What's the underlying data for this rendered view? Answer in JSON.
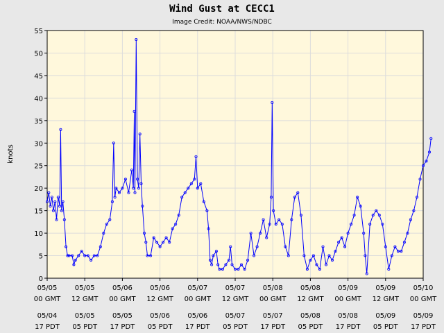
{
  "chart_data": {
    "type": "line",
    "title": "Wind Gust at CECC1",
    "subtitle": "Image Credit: NOAA/NWS/NDBC",
    "xlabel": "",
    "ylabel": "knots",
    "ylim": [
      0,
      55
    ],
    "xlim_hours": [
      0,
      120
    ],
    "y_ticks": [
      0,
      5,
      10,
      15,
      20,
      25,
      30,
      35,
      40,
      45,
      50,
      55
    ],
    "x_ticks": [
      {
        "hour": 0,
        "gmt": [
          "05/05",
          "00 GMT"
        ],
        "pdt": [
          "05/04",
          "17 PDT"
        ]
      },
      {
        "hour": 12,
        "gmt": [
          "05/05",
          "12 GMT"
        ],
        "pdt": [
          "05/05",
          "05 PDT"
        ]
      },
      {
        "hour": 24,
        "gmt": [
          "05/06",
          "00 GMT"
        ],
        "pdt": [
          "05/05",
          "17 PDT"
        ]
      },
      {
        "hour": 36,
        "gmt": [
          "05/06",
          "12 GMT"
        ],
        "pdt": [
          "05/06",
          "05 PDT"
        ]
      },
      {
        "hour": 48,
        "gmt": [
          "05/07",
          "00 GMT"
        ],
        "pdt": [
          "05/06",
          "17 PDT"
        ]
      },
      {
        "hour": 60,
        "gmt": [
          "05/07",
          "12 GMT"
        ],
        "pdt": [
          "05/07",
          "05 PDT"
        ]
      },
      {
        "hour": 72,
        "gmt": [
          "05/08",
          "00 GMT"
        ],
        "pdt": [
          "05/07",
          "17 PDT"
        ]
      },
      {
        "hour": 84,
        "gmt": [
          "05/08",
          "12 GMT"
        ],
        "pdt": [
          "05/08",
          "05 PDT"
        ]
      },
      {
        "hour": 96,
        "gmt": [
          "05/09",
          "00 GMT"
        ],
        "pdt": [
          "05/08",
          "17 PDT"
        ]
      },
      {
        "hour": 108,
        "gmt": [
          "05/09",
          "12 GMT"
        ],
        "pdt": [
          "05/09",
          "05 PDT"
        ]
      },
      {
        "hour": 120,
        "gmt": [
          "05/10",
          "00 GMT"
        ],
        "pdt": [
          "05/09",
          "17 PDT"
        ]
      }
    ],
    "grid": true,
    "series": [
      {
        "color": "#0000ff",
        "points": [
          [
            0,
            17
          ],
          [
            0.5,
            19
          ],
          [
            1,
            16
          ],
          [
            1.5,
            18
          ],
          [
            2,
            15
          ],
          [
            2.5,
            17
          ],
          [
            3,
            13
          ],
          [
            3.5,
            18
          ],
          [
            4,
            16
          ],
          [
            4.3,
            33
          ],
          [
            4.6,
            15
          ],
          [
            5,
            17
          ],
          [
            5.5,
            13
          ],
          [
            6,
            7
          ],
          [
            6.5,
            5
          ],
          [
            7,
            5
          ],
          [
            8,
            5
          ],
          [
            8.5,
            3
          ],
          [
            9,
            4
          ],
          [
            10,
            5
          ],
          [
            11,
            6
          ],
          [
            12,
            5
          ],
          [
            13,
            5
          ],
          [
            14,
            4
          ],
          [
            15,
            5
          ],
          [
            16,
            5
          ],
          [
            17,
            7
          ],
          [
            18,
            10
          ],
          [
            19,
            12
          ],
          [
            20,
            13
          ],
          [
            20.8,
            17
          ],
          [
            21.2,
            30
          ],
          [
            21.6,
            18
          ],
          [
            22,
            20
          ],
          [
            23,
            19
          ],
          [
            24,
            20
          ],
          [
            25,
            22
          ],
          [
            26,
            19
          ],
          [
            27,
            24
          ],
          [
            27.5,
            20
          ],
          [
            27.8,
            37
          ],
          [
            28,
            19
          ],
          [
            28.4,
            53
          ],
          [
            28.8,
            22
          ],
          [
            29.2,
            20
          ],
          [
            29.6,
            32
          ],
          [
            30,
            21
          ],
          [
            30.4,
            16
          ],
          [
            31,
            10
          ],
          [
            31.5,
            8
          ],
          [
            32,
            5
          ],
          [
            33,
            5
          ],
          [
            34,
            9
          ],
          [
            35,
            8
          ],
          [
            36,
            7
          ],
          [
            37,
            8
          ],
          [
            38,
            9
          ],
          [
            39,
            8
          ],
          [
            40,
            11
          ],
          [
            41,
            12
          ],
          [
            42,
            14
          ],
          [
            43,
            18
          ],
          [
            44,
            19
          ],
          [
            45,
            20
          ],
          [
            46,
            21
          ],
          [
            47,
            22
          ],
          [
            47.5,
            27
          ],
          [
            48,
            20
          ],
          [
            49,
            21
          ],
          [
            50,
            17
          ],
          [
            51,
            15
          ],
          [
            51.5,
            11
          ],
          [
            52,
            4
          ],
          [
            52.5,
            3
          ],
          [
            53,
            5
          ],
          [
            54,
            6
          ],
          [
            54.5,
            3
          ],
          [
            55,
            2
          ],
          [
            56,
            2
          ],
          [
            57,
            3
          ],
          [
            58,
            4
          ],
          [
            58.5,
            7
          ],
          [
            59,
            3
          ],
          [
            60,
            2
          ],
          [
            61,
            2
          ],
          [
            62,
            3
          ],
          [
            63,
            2
          ],
          [
            64,
            4
          ],
          [
            65,
            10
          ],
          [
            66,
            5
          ],
          [
            67,
            7
          ],
          [
            68,
            10
          ],
          [
            69,
            13
          ],
          [
            70,
            9
          ],
          [
            71,
            12
          ],
          [
            71.5,
            18
          ],
          [
            71.8,
            39
          ],
          [
            72.2,
            15
          ],
          [
            73,
            12
          ],
          [
            74,
            13
          ],
          [
            75,
            12
          ],
          [
            76,
            7
          ],
          [
            77,
            5
          ],
          [
            78,
            13
          ],
          [
            79,
            18
          ],
          [
            80,
            19
          ],
          [
            81,
            14
          ],
          [
            82,
            5
          ],
          [
            83,
            2
          ],
          [
            84,
            4
          ],
          [
            85,
            5
          ],
          [
            86,
            3
          ],
          [
            87,
            2
          ],
          [
            88,
            7
          ],
          [
            89,
            3
          ],
          [
            90,
            5
          ],
          [
            91,
            4
          ],
          [
            92,
            6
          ],
          [
            93,
            8
          ],
          [
            94,
            9
          ],
          [
            95,
            7
          ],
          [
            96,
            10
          ],
          [
            97,
            12
          ],
          [
            98,
            14
          ],
          [
            99,
            18
          ],
          [
            100,
            16
          ],
          [
            101,
            10
          ],
          [
            101.5,
            5
          ],
          [
            102,
            1
          ],
          [
            103,
            12
          ],
          [
            104,
            14
          ],
          [
            105,
            15
          ],
          [
            106,
            14
          ],
          [
            107,
            12
          ],
          [
            108,
            7
          ],
          [
            109,
            2
          ],
          [
            110,
            5
          ],
          [
            111,
            7
          ],
          [
            112,
            6
          ],
          [
            113,
            6
          ],
          [
            114,
            8
          ],
          [
            115,
            10
          ],
          [
            116,
            13
          ],
          [
            117,
            15
          ],
          [
            118,
            18
          ],
          [
            119,
            22
          ],
          [
            120,
            25
          ],
          [
            121,
            26
          ],
          [
            122,
            28
          ],
          [
            122.5,
            31
          ]
        ]
      }
    ]
  }
}
